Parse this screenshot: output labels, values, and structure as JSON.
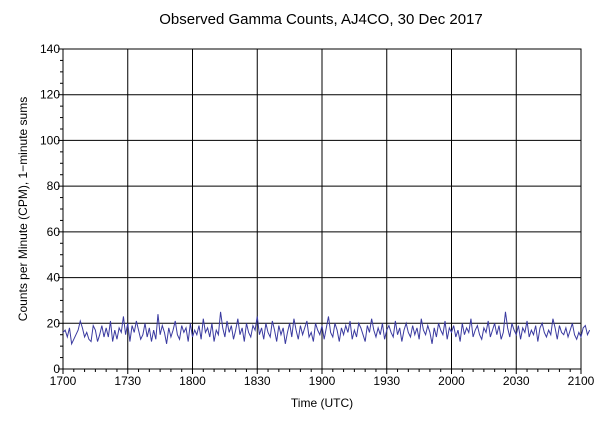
{
  "chart_data": {
    "type": "line",
    "title": "Observed Gamma Counts, AJ4CO, 30 Dec 2017",
    "xlabel": "Time (UTC)",
    "ylabel": "Counts per Minute (CPM), 1−minute sums",
    "xlim": [
      0,
      240
    ],
    "ylim": [
      0,
      140
    ],
    "x_ticks": [
      {
        "value": 0,
        "label": "1700"
      },
      {
        "value": 30,
        "label": "1730"
      },
      {
        "value": 60,
        "label": "1800"
      },
      {
        "value": 90,
        "label": "1830"
      },
      {
        "value": 120,
        "label": "1900"
      },
      {
        "value": 150,
        "label": "1930"
      },
      {
        "value": 180,
        "label": "2000"
      },
      {
        "value": 210,
        "label": "2030"
      },
      {
        "value": 240,
        "label": "2100"
      }
    ],
    "y_ticks": [
      0,
      20,
      40,
      60,
      80,
      100,
      120,
      140
    ],
    "grid": true,
    "line_color": "#3a3aa0",
    "series": [
      {
        "values": [
          16,
          17,
          14,
          18,
          11,
          13,
          15,
          17,
          21,
          18,
          14,
          16,
          13,
          12,
          19,
          17,
          12,
          15,
          19,
          14,
          18,
          14,
          21,
          12,
          17,
          13,
          18,
          16,
          23,
          15,
          20,
          12,
          19,
          16,
          21,
          17,
          13,
          15,
          20,
          14,
          18,
          12,
          17,
          13,
          24,
          15,
          19,
          16,
          11,
          18,
          14,
          17,
          21,
          15,
          13,
          19,
          16,
          18,
          12,
          20,
          14,
          17,
          15,
          19,
          13,
          22,
          16,
          18,
          14,
          20,
          12,
          17,
          15,
          25,
          18,
          14,
          21,
          16,
          19,
          13,
          17,
          22,
          15,
          18,
          12,
          20,
          16,
          14,
          19,
          17,
          23,
          15,
          18,
          13,
          20,
          16,
          14,
          21,
          17,
          12,
          19,
          15,
          18,
          11,
          16,
          20,
          14,
          22,
          17,
          13,
          19,
          15,
          18,
          21,
          14,
          16,
          12,
          20,
          17,
          15,
          19,
          13,
          18,
          23,
          16,
          14,
          20,
          17,
          12,
          18,
          15,
          19,
          16,
          21,
          13,
          17,
          14,
          20,
          18,
          15,
          12,
          19,
          16,
          22,
          17,
          14,
          18,
          15,
          20,
          13,
          17,
          19,
          16,
          14,
          21,
          15,
          18,
          12,
          17,
          20,
          16,
          14,
          19,
          15,
          18,
          13,
          22,
          17,
          15,
          19,
          16,
          11,
          18,
          14,
          20,
          17,
          15,
          21,
          13,
          18,
          16,
          19,
          14,
          17,
          12,
          20,
          15,
          18,
          16,
          22,
          14,
          17,
          19,
          15,
          13,
          18,
          16,
          21,
          14,
          17,
          20,
          15,
          19,
          13,
          16,
          25,
          18,
          14,
          20,
          17,
          15,
          19,
          13,
          18,
          16,
          21,
          14,
          17,
          15,
          19,
          12,
          18,
          20,
          16,
          14,
          17,
          15,
          22,
          18,
          13,
          19,
          16,
          15,
          18,
          14,
          17,
          20,
          15,
          13,
          16,
          14,
          18,
          19,
          15,
          17
        ],
        "x_step": 1
      }
    ]
  }
}
